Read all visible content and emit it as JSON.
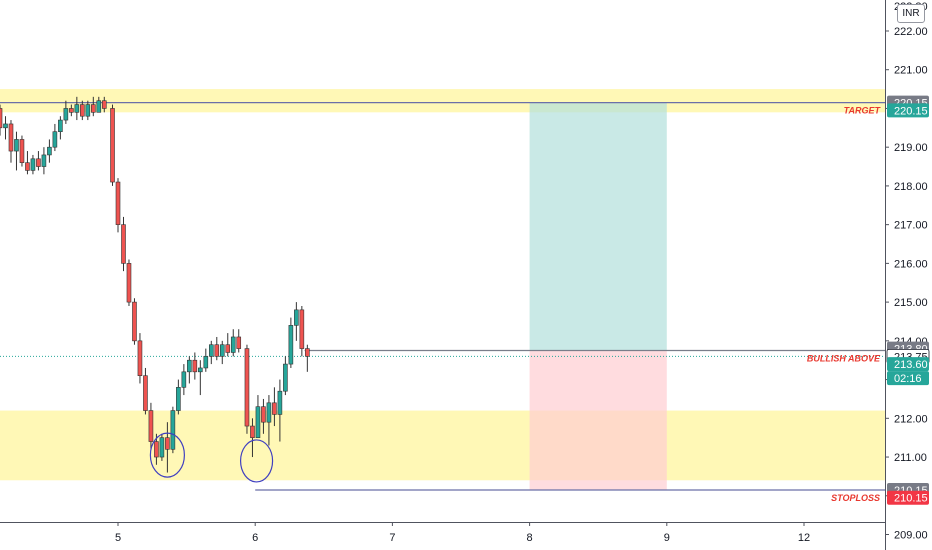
{
  "currency": "INR",
  "countdown": "02:16",
  "colors": {
    "up": "#26a69a",
    "down": "#ef5350",
    "zone": "#fff59d",
    "profit": "#b2dfdb",
    "loss": "#ffcdd2",
    "level_line": "#6b6fa8",
    "label": "#e8382f",
    "current_price": "#26a69a",
    "stop_tag": "#f23645"
  },
  "price_scale": {
    "ticks": [
      "222.00",
      "221.00",
      "220.00",
      "219.00",
      "218.00",
      "217.00",
      "216.00",
      "215.00",
      "214.00",
      "213.00",
      "212.00",
      "211.00",
      "210.00",
      "209.00"
    ],
    "top_partial": "222.80",
    "min": 208.6,
    "max": 222.8
  },
  "time_scale": {
    "ticks": [
      {
        "label": "5",
        "t": 0
      },
      {
        "label": "6",
        "t": 1
      },
      {
        "label": "7",
        "t": 2
      },
      {
        "label": "8",
        "t": 3
      },
      {
        "label": "9",
        "t": 4
      },
      {
        "label": "12",
        "t": 5
      }
    ]
  },
  "levels": {
    "target": {
      "label": "TARGET",
      "price": 220.15
    },
    "bullish": {
      "label": "BULLISH ABOVE",
      "price": 213.75
    },
    "stoploss": {
      "label": "STOPLOSS",
      "price": 210.15
    }
  },
  "price_tags": [
    {
      "text": "220.15",
      "price": 220.15,
      "style": "gray"
    },
    {
      "text": "220.15",
      "price": 219.95,
      "style": "teal"
    },
    {
      "text": "213.80",
      "price": 213.8,
      "style": "gray"
    },
    {
      "text": "213.75",
      "price": 213.6,
      "style": "white"
    },
    {
      "text": "213.60",
      "price": 213.4,
      "style": "teal"
    },
    {
      "text": "210.15",
      "price": 210.15,
      "style": "gray"
    },
    {
      "text": "210.15",
      "price": 209.95,
      "style": "red"
    }
  ],
  "chart_data": {
    "type": "candlestick",
    "ylim": [
      208.6,
      222.8
    ],
    "zones": [
      {
        "from": 219.9,
        "to": 220.5
      },
      {
        "from": 210.4,
        "to": 212.2
      }
    ],
    "position": {
      "entry": 213.75,
      "target": 220.15,
      "stop": 210.15,
      "t_from": 3.0,
      "t_to": 4.0
    },
    "candles": [
      [
        -0.86,
        220.0,
        220.1,
        219.3,
        219.5
      ],
      [
        -0.82,
        219.5,
        219.8,
        219.2,
        219.6
      ],
      [
        -0.78,
        219.6,
        219.7,
        218.6,
        218.9
      ],
      [
        -0.74,
        218.9,
        219.4,
        218.4,
        219.2
      ],
      [
        -0.7,
        219.2,
        219.3,
        218.5,
        218.6
      ],
      [
        -0.66,
        218.6,
        218.9,
        218.3,
        218.4
      ],
      [
        -0.62,
        218.4,
        218.8,
        218.3,
        218.7
      ],
      [
        -0.58,
        218.7,
        218.9,
        218.4,
        218.5
      ],
      [
        -0.54,
        218.5,
        219.0,
        218.3,
        218.8
      ],
      [
        -0.5,
        218.8,
        219.2,
        218.6,
        219.0
      ],
      [
        -0.46,
        219.0,
        219.6,
        218.9,
        219.4
      ],
      [
        -0.42,
        219.4,
        219.8,
        219.2,
        219.7
      ],
      [
        -0.38,
        219.7,
        220.2,
        219.6,
        220.0
      ],
      [
        -0.34,
        220.0,
        220.1,
        219.8,
        219.9
      ],
      [
        -0.3,
        219.9,
        220.3,
        219.7,
        220.1
      ],
      [
        -0.26,
        220.1,
        220.2,
        219.7,
        219.8
      ],
      [
        -0.22,
        219.8,
        220.2,
        219.7,
        220.1
      ],
      [
        -0.18,
        220.1,
        220.3,
        219.8,
        219.9
      ],
      [
        -0.14,
        219.9,
        220.3,
        219.9,
        220.2
      ],
      [
        -0.1,
        220.2,
        220.3,
        219.9,
        220.0
      ],
      [
        -0.04,
        220.0,
        220.1,
        218.0,
        218.1
      ],
      [
        0.0,
        218.1,
        218.2,
        216.8,
        217.0
      ],
      [
        0.04,
        217.0,
        217.2,
        215.8,
        216.0
      ],
      [
        0.08,
        216.0,
        216.1,
        214.9,
        215.0
      ],
      [
        0.12,
        215.0,
        215.1,
        213.9,
        214.0
      ],
      [
        0.16,
        214.0,
        214.2,
        212.9,
        213.1
      ],
      [
        0.2,
        213.1,
        213.3,
        212.1,
        212.2
      ],
      [
        0.24,
        212.2,
        212.4,
        211.2,
        211.4
      ],
      [
        0.28,
        211.4,
        211.6,
        210.8,
        211.0
      ],
      [
        0.32,
        211.0,
        211.6,
        210.9,
        211.5
      ],
      [
        0.36,
        211.5,
        211.9,
        210.6,
        211.2
      ],
      [
        0.4,
        211.2,
        212.3,
        211.1,
        212.2
      ],
      [
        0.44,
        212.2,
        213.0,
        212.1,
        212.8
      ],
      [
        0.48,
        212.8,
        213.4,
        212.6,
        213.2
      ],
      [
        0.52,
        213.2,
        213.6,
        212.9,
        213.5
      ],
      [
        0.56,
        213.5,
        213.7,
        213.0,
        213.2
      ],
      [
        0.6,
        213.2,
        213.5,
        212.6,
        213.3
      ],
      [
        0.64,
        213.3,
        213.8,
        213.2,
        213.6
      ],
      [
        0.68,
        213.6,
        214.0,
        213.4,
        213.9
      ],
      [
        0.72,
        213.9,
        214.1,
        213.5,
        213.6
      ],
      [
        0.76,
        213.6,
        214.0,
        213.4,
        213.9
      ],
      [
        0.8,
        213.9,
        214.2,
        213.6,
        213.7
      ],
      [
        0.84,
        213.7,
        214.3,
        213.6,
        214.1
      ],
      [
        0.88,
        214.1,
        214.3,
        213.7,
        213.8
      ],
      [
        0.94,
        213.8,
        213.9,
        211.6,
        211.8
      ],
      [
        0.98,
        211.8,
        212.0,
        211.0,
        211.5
      ],
      [
        1.02,
        211.5,
        212.6,
        211.5,
        212.3
      ],
      [
        1.06,
        212.3,
        212.5,
        211.6,
        211.9
      ],
      [
        1.1,
        211.9,
        212.6,
        211.3,
        212.4
      ],
      [
        1.14,
        212.4,
        212.8,
        211.8,
        212.1
      ],
      [
        1.18,
        212.1,
        213.0,
        211.4,
        212.7
      ],
      [
        1.22,
        212.7,
        213.6,
        212.6,
        213.4
      ],
      [
        1.26,
        213.4,
        214.6,
        213.3,
        214.4
      ],
      [
        1.3,
        214.4,
        215.0,
        214.0,
        214.8
      ],
      [
        1.34,
        214.8,
        214.9,
        213.6,
        213.8
      ],
      [
        1.38,
        213.8,
        213.9,
        213.2,
        213.6
      ]
    ]
  }
}
